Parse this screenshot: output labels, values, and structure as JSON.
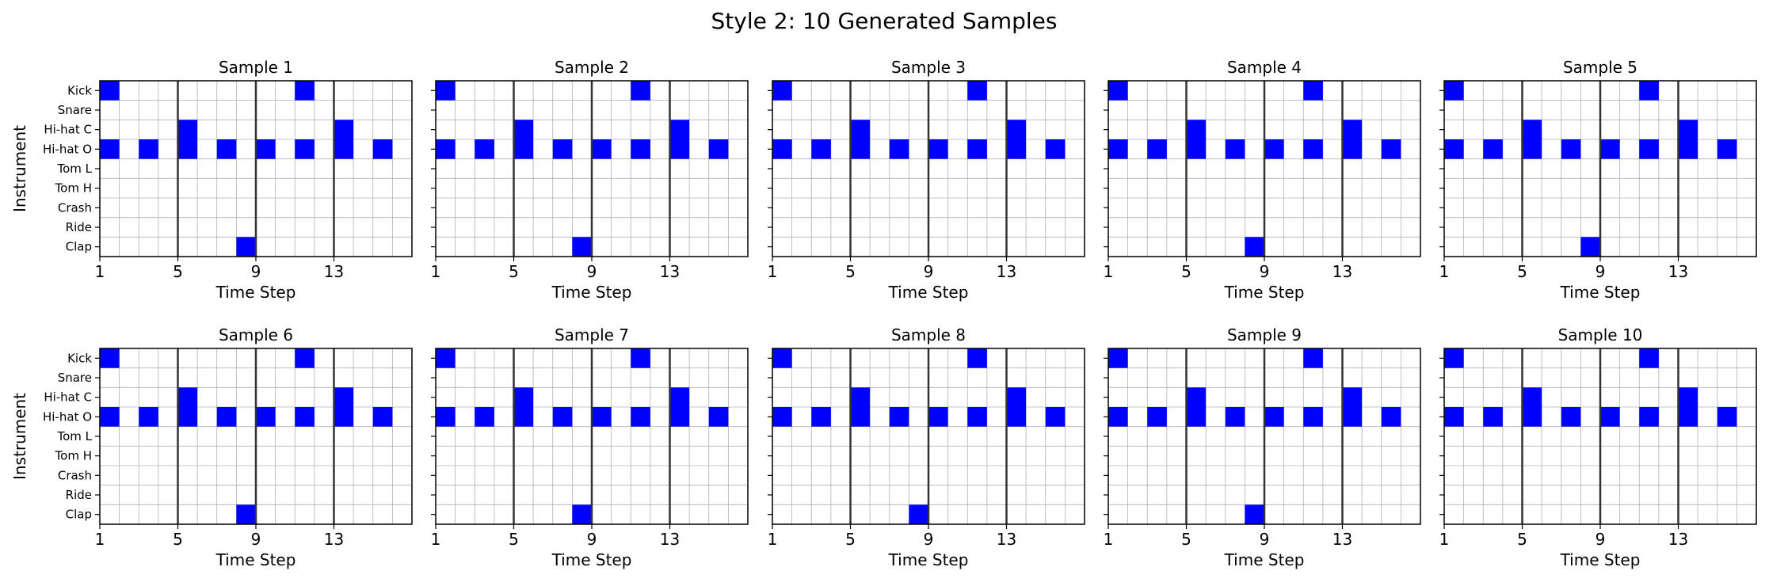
{
  "figure": {
    "title": "Style 2: 10 Generated Samples",
    "colors": {
      "active": "#0000ff",
      "grid": "#b0b0b0",
      "bar_line": "#333333",
      "frame": "#000000"
    }
  },
  "chart_data": {
    "type": "heatmap",
    "title": "Style 2: 10 Generated Samples",
    "xlabel": "Time Step",
    "ylabel": "Instrument",
    "instruments": [
      "Kick",
      "Snare",
      "Hi-hat C",
      "Hi-hat O",
      "Tom L",
      "Tom H",
      "Crash",
      "Ride",
      "Clap"
    ],
    "x_ticks": [
      1,
      5,
      9,
      13
    ],
    "xlim": [
      1,
      17
    ],
    "steps": 16,
    "bar_lines": [
      5,
      9,
      13
    ],
    "grid": true,
    "samples": [
      {
        "title": "Sample 1",
        "hits": [
          {
            "instrument": "Kick",
            "steps": [
              1,
              11
            ]
          },
          {
            "instrument": "Hi-hat C",
            "steps": [
              5,
              13
            ]
          },
          {
            "instrument": "Hi-hat O",
            "steps": [
              1,
              3,
              5,
              7,
              9,
              11,
              13,
              15
            ]
          },
          {
            "instrument": "Clap",
            "steps": [
              8
            ]
          }
        ]
      },
      {
        "title": "Sample 2",
        "hits": [
          {
            "instrument": "Kick",
            "steps": [
              1,
              11
            ]
          },
          {
            "instrument": "Hi-hat C",
            "steps": [
              5,
              13
            ]
          },
          {
            "instrument": "Hi-hat O",
            "steps": [
              1,
              3,
              5,
              7,
              9,
              11,
              13,
              15
            ]
          },
          {
            "instrument": "Clap",
            "steps": [
              8
            ]
          }
        ]
      },
      {
        "title": "Sample 3",
        "hits": [
          {
            "instrument": "Kick",
            "steps": [
              1,
              11
            ]
          },
          {
            "instrument": "Hi-hat C",
            "steps": [
              5,
              13
            ]
          },
          {
            "instrument": "Hi-hat O",
            "steps": [
              1,
              3,
              5,
              7,
              9,
              11,
              13,
              15
            ]
          }
        ]
      },
      {
        "title": "Sample 4",
        "hits": [
          {
            "instrument": "Kick",
            "steps": [
              1,
              11
            ]
          },
          {
            "instrument": "Hi-hat C",
            "steps": [
              5,
              13
            ]
          },
          {
            "instrument": "Hi-hat O",
            "steps": [
              1,
              3,
              5,
              7,
              9,
              11,
              13,
              15
            ]
          },
          {
            "instrument": "Clap",
            "steps": [
              8
            ]
          }
        ]
      },
      {
        "title": "Sample 5",
        "hits": [
          {
            "instrument": "Kick",
            "steps": [
              1,
              11
            ]
          },
          {
            "instrument": "Hi-hat C",
            "steps": [
              5,
              13
            ]
          },
          {
            "instrument": "Hi-hat O",
            "steps": [
              1,
              3,
              5,
              7,
              9,
              11,
              13,
              15
            ]
          },
          {
            "instrument": "Clap",
            "steps": [
              8
            ]
          }
        ]
      },
      {
        "title": "Sample 6",
        "hits": [
          {
            "instrument": "Kick",
            "steps": [
              1,
              11
            ]
          },
          {
            "instrument": "Hi-hat C",
            "steps": [
              5,
              13
            ]
          },
          {
            "instrument": "Hi-hat O",
            "steps": [
              1,
              3,
              5,
              7,
              9,
              11,
              13,
              15
            ]
          },
          {
            "instrument": "Clap",
            "steps": [
              8
            ]
          }
        ]
      },
      {
        "title": "Sample 7",
        "hits": [
          {
            "instrument": "Kick",
            "steps": [
              1,
              11
            ]
          },
          {
            "instrument": "Hi-hat C",
            "steps": [
              5,
              13
            ]
          },
          {
            "instrument": "Hi-hat O",
            "steps": [
              1,
              3,
              5,
              7,
              9,
              11,
              13,
              15
            ]
          },
          {
            "instrument": "Clap",
            "steps": [
              8
            ]
          }
        ]
      },
      {
        "title": "Sample 8",
        "hits": [
          {
            "instrument": "Kick",
            "steps": [
              1,
              11
            ]
          },
          {
            "instrument": "Hi-hat C",
            "steps": [
              5,
              13
            ]
          },
          {
            "instrument": "Hi-hat O",
            "steps": [
              1,
              3,
              5,
              7,
              9,
              11,
              13,
              15
            ]
          },
          {
            "instrument": "Clap",
            "steps": [
              8
            ]
          }
        ]
      },
      {
        "title": "Sample 9",
        "hits": [
          {
            "instrument": "Kick",
            "steps": [
              1,
              11
            ]
          },
          {
            "instrument": "Hi-hat C",
            "steps": [
              5,
              13
            ]
          },
          {
            "instrument": "Hi-hat O",
            "steps": [
              1,
              3,
              5,
              7,
              9,
              11,
              13,
              15
            ]
          },
          {
            "instrument": "Clap",
            "steps": [
              8
            ]
          }
        ]
      },
      {
        "title": "Sample 10",
        "hits": [
          {
            "instrument": "Kick",
            "steps": [
              1,
              11
            ]
          },
          {
            "instrument": "Hi-hat C",
            "steps": [
              5,
              13
            ]
          },
          {
            "instrument": "Hi-hat O",
            "steps": [
              1,
              3,
              5,
              7,
              9,
              11,
              13,
              15
            ]
          }
        ]
      }
    ]
  }
}
